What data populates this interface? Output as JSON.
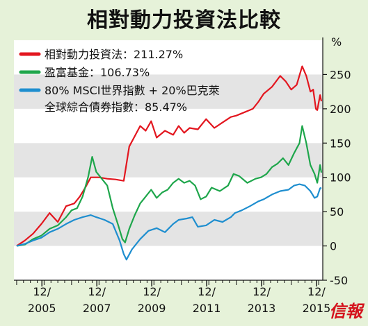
{
  "chart_data": {
    "type": "line",
    "title": "相對動力投資法比較",
    "y_unit": "%",
    "ylim": [
      -50,
      300
    ],
    "yticks": [
      -50,
      0,
      50,
      100,
      150,
      200,
      250
    ],
    "ytick_labels": [
      "-50",
      "0",
      "50",
      "100",
      "150",
      "200",
      "250"
    ],
    "xlim": [
      2004.9,
      2016.15
    ],
    "xticks": [
      {
        "value": 2005.92,
        "top": "12/",
        "bottom": "2005"
      },
      {
        "value": 2007.92,
        "top": "12/",
        "bottom": "2007"
      },
      {
        "value": 2009.92,
        "top": "12/",
        "bottom": "2009"
      },
      {
        "value": 2011.92,
        "top": "12/",
        "bottom": "2011"
      },
      {
        "value": 2013.92,
        "top": "12/",
        "bottom": "2013"
      },
      {
        "value": 2015.92,
        "top": "12/",
        "bottom": "2015"
      }
    ],
    "grid_bands": true,
    "legend_position": "top-left",
    "series": [
      {
        "name": "相對動力投資法：211.27%",
        "color": "#e3161f",
        "points": [
          [
            2005.0,
            0
          ],
          [
            2005.3,
            8
          ],
          [
            2005.6,
            18
          ],
          [
            2005.9,
            32
          ],
          [
            2006.2,
            48
          ],
          [
            2006.5,
            35
          ],
          [
            2006.8,
            58
          ],
          [
            2007.1,
            62
          ],
          [
            2007.3,
            72
          ],
          [
            2007.5,
            85
          ],
          [
            2007.7,
            100
          ],
          [
            2008.0,
            100
          ],
          [
            2008.3,
            98
          ],
          [
            2008.6,
            97
          ],
          [
            2008.9,
            95
          ],
          [
            2009.1,
            145
          ],
          [
            2009.3,
            160
          ],
          [
            2009.5,
            175
          ],
          [
            2009.7,
            168
          ],
          [
            2009.9,
            182
          ],
          [
            2010.1,
            158
          ],
          [
            2010.4,
            168
          ],
          [
            2010.7,
            162
          ],
          [
            2010.9,
            175
          ],
          [
            2011.1,
            165
          ],
          [
            2011.3,
            172
          ],
          [
            2011.6,
            170
          ],
          [
            2011.9,
            185
          ],
          [
            2012.2,
            172
          ],
          [
            2012.5,
            180
          ],
          [
            2012.8,
            188
          ],
          [
            2013.0,
            190
          ],
          [
            2013.3,
            195
          ],
          [
            2013.6,
            200
          ],
          [
            2013.8,
            210
          ],
          [
            2014.0,
            222
          ],
          [
            2014.3,
            232
          ],
          [
            2014.6,
            248
          ],
          [
            2014.8,
            240
          ],
          [
            2015.0,
            228
          ],
          [
            2015.2,
            235
          ],
          [
            2015.4,
            262
          ],
          [
            2015.55,
            248
          ],
          [
            2015.7,
            225
          ],
          [
            2015.8,
            228
          ],
          [
            2015.9,
            200
          ],
          [
            2015.95,
            198
          ],
          [
            2016.05,
            220
          ],
          [
            2016.1,
            211
          ]
        ]
      },
      {
        "name": "盈富基金：106.73%",
        "color": "#1ea64b",
        "points": [
          [
            2005.0,
            0
          ],
          [
            2005.3,
            2
          ],
          [
            2005.6,
            10
          ],
          [
            2005.9,
            15
          ],
          [
            2006.2,
            25
          ],
          [
            2006.5,
            30
          ],
          [
            2006.8,
            42
          ],
          [
            2007.0,
            52
          ],
          [
            2007.2,
            55
          ],
          [
            2007.4,
            72
          ],
          [
            2007.6,
            100
          ],
          [
            2007.75,
            130
          ],
          [
            2007.9,
            108
          ],
          [
            2008.1,
            98
          ],
          [
            2008.3,
            88
          ],
          [
            2008.5,
            55
          ],
          [
            2008.7,
            30
          ],
          [
            2008.85,
            10
          ],
          [
            2008.95,
            5
          ],
          [
            2009.1,
            25
          ],
          [
            2009.3,
            45
          ],
          [
            2009.5,
            62
          ],
          [
            2009.7,
            72
          ],
          [
            2009.9,
            82
          ],
          [
            2010.1,
            70
          ],
          [
            2010.3,
            78
          ],
          [
            2010.5,
            82
          ],
          [
            2010.7,
            92
          ],
          [
            2010.9,
            98
          ],
          [
            2011.1,
            92
          ],
          [
            2011.3,
            95
          ],
          [
            2011.5,
            88
          ],
          [
            2011.7,
            68
          ],
          [
            2011.9,
            72
          ],
          [
            2012.1,
            85
          ],
          [
            2012.4,
            80
          ],
          [
            2012.7,
            88
          ],
          [
            2012.9,
            105
          ],
          [
            2013.1,
            102
          ],
          [
            2013.4,
            92
          ],
          [
            2013.7,
            98
          ],
          [
            2013.9,
            100
          ],
          [
            2014.1,
            105
          ],
          [
            2014.3,
            115
          ],
          [
            2014.5,
            120
          ],
          [
            2014.7,
            128
          ],
          [
            2014.9,
            118
          ],
          [
            2015.1,
            135
          ],
          [
            2015.3,
            150
          ],
          [
            2015.4,
            175
          ],
          [
            2015.55,
            150
          ],
          [
            2015.7,
            118
          ],
          [
            2015.85,
            105
          ],
          [
            2015.95,
            92
          ],
          [
            2016.05,
            118
          ],
          [
            2016.1,
            107
          ]
        ]
      },
      {
        "name": "80% MSCI世界指數 + 20%巴克萊全球綜合債券指數：85.47%",
        "legend_lines": [
          "80% MSCI世界指數 + 20%巴克萊",
          "全球綜合債券指數：85.47%"
        ],
        "color": "#1e8ecf",
        "points": [
          [
            2005.0,
            0
          ],
          [
            2005.3,
            3
          ],
          [
            2005.6,
            8
          ],
          [
            2005.9,
            12
          ],
          [
            2006.2,
            20
          ],
          [
            2006.5,
            25
          ],
          [
            2006.8,
            32
          ],
          [
            2007.1,
            38
          ],
          [
            2007.4,
            42
          ],
          [
            2007.7,
            45
          ],
          [
            2007.9,
            42
          ],
          [
            2008.2,
            38
          ],
          [
            2008.5,
            32
          ],
          [
            2008.75,
            8
          ],
          [
            2008.9,
            -12
          ],
          [
            2009.0,
            -20
          ],
          [
            2009.2,
            -5
          ],
          [
            2009.5,
            10
          ],
          [
            2009.8,
            22
          ],
          [
            2010.1,
            26
          ],
          [
            2010.4,
            20
          ],
          [
            2010.7,
            32
          ],
          [
            2010.9,
            38
          ],
          [
            2011.2,
            40
          ],
          [
            2011.4,
            42
          ],
          [
            2011.6,
            28
          ],
          [
            2011.9,
            30
          ],
          [
            2012.2,
            38
          ],
          [
            2012.5,
            35
          ],
          [
            2012.8,
            42
          ],
          [
            2012.95,
            48
          ],
          [
            2013.2,
            52
          ],
          [
            2013.5,
            58
          ],
          [
            2013.8,
            65
          ],
          [
            2014.0,
            68
          ],
          [
            2014.3,
            75
          ],
          [
            2014.6,
            80
          ],
          [
            2014.9,
            82
          ],
          [
            2015.1,
            88
          ],
          [
            2015.3,
            90
          ],
          [
            2015.5,
            88
          ],
          [
            2015.7,
            80
          ],
          [
            2015.85,
            70
          ],
          [
            2015.95,
            72
          ],
          [
            2016.05,
            84
          ],
          [
            2016.1,
            85
          ]
        ]
      }
    ]
  },
  "logo_text": "信報"
}
